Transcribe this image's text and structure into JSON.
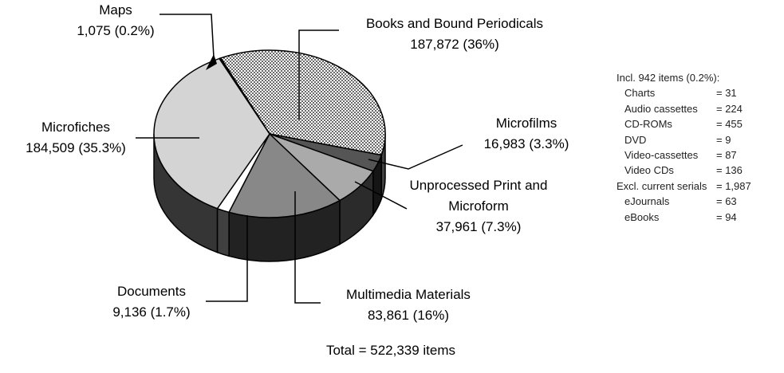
{
  "chart_data": {
    "type": "pie",
    "categories": [
      "Books and Bound Periodicals",
      "Microfilms",
      "Unprocessed Print and Microform",
      "Multimedia Materials",
      "Documents",
      "Microfiches",
      "Maps"
    ],
    "values": [
      187872,
      16983,
      37961,
      83861,
      9136,
      184509,
      1075
    ],
    "value_labels": [
      "187,872 (36%)",
      "16,983  (3.3%)",
      "37,961 (7.3%)",
      "83,861 (16%)",
      "9,136 (1.7%)",
      "184,509 (35.3%)",
      "1,075 (0.2%)"
    ],
    "colors": [
      "#ffffff",
      "#555555",
      "#aaaaaa",
      "#888888",
      "#ffffff",
      "#d4d4d4",
      "#000000"
    ],
    "patterns": [
      "dots",
      "solid",
      "solid",
      "solid",
      "solid",
      "solid",
      "solid"
    ],
    "footnote": "Total = 522,339 items",
    "note": [
      {
        "heading": "Incl. 942 items (0.2%):",
        "items": [
          [
            "Charts",
            "= 31"
          ],
          [
            "Audio cassettes",
            "= 224"
          ],
          [
            "CD-ROMs",
            "= 455"
          ],
          [
            "DVD",
            "= 9"
          ],
          [
            "Video-cassettes",
            "= 87"
          ],
          [
            "Video CDs",
            "= 136"
          ]
        ]
      },
      {
        "heading": "Excl. current serials",
        "value": "= 1,987",
        "items": [
          [
            "eJournals",
            "= 63"
          ],
          [
            "eBooks",
            "= 94"
          ]
        ]
      }
    ]
  }
}
